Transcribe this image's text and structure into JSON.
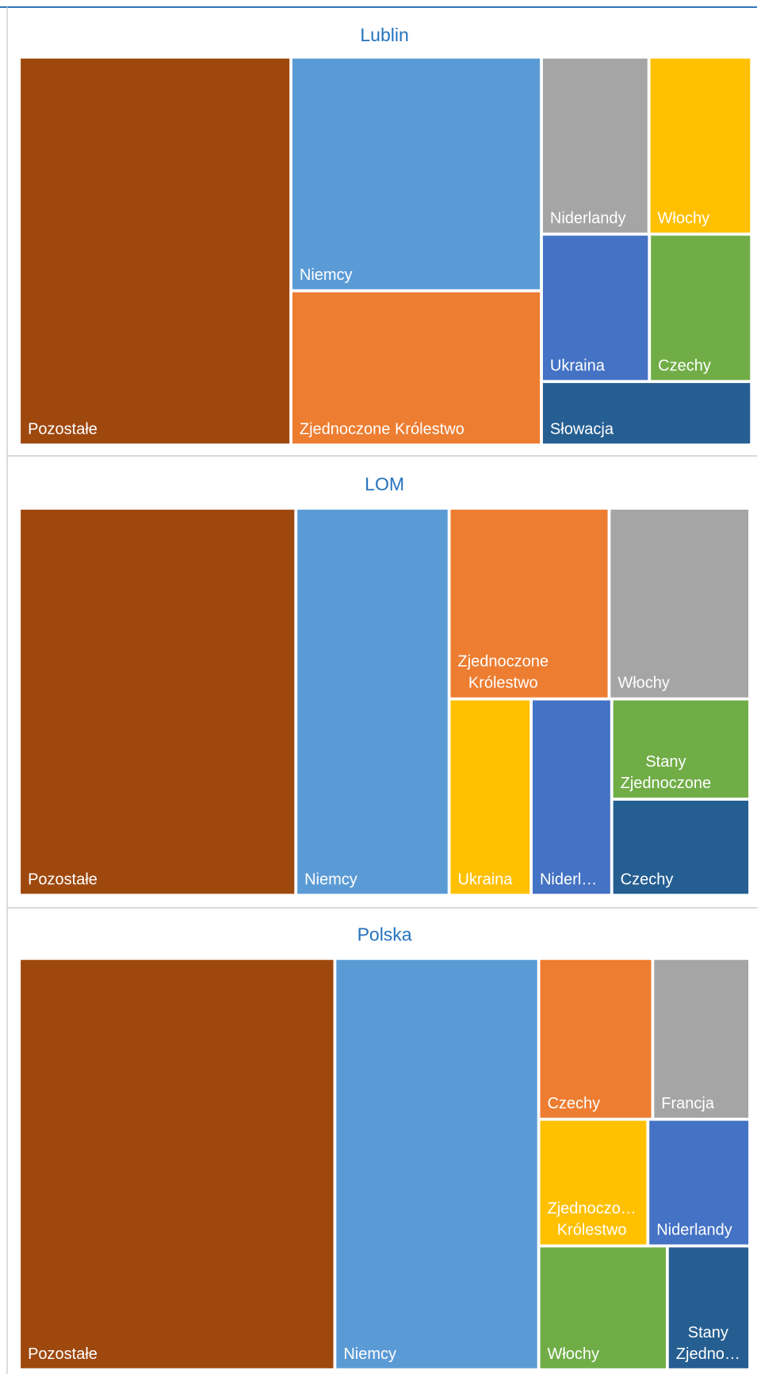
{
  "chart_data": [
    {
      "type": "treemap",
      "title": "Lublin",
      "categories": [
        "Pozostałe",
        "Niemcy",
        "Zjednoczone Królestwo",
        "Niderlandy",
        "Włochy",
        "Ukraina",
        "Czechy",
        "Słowacja"
      ],
      "values": [
        37.1,
        20.6,
        13.6,
        6.7,
        6.4,
        5.6,
        5.3,
        4.7
      ],
      "colors": [
        "#9e480e",
        "#5b9bd5",
        "#ed7d31",
        "#a5a5a5",
        "#ffc000",
        "#4472c4",
        "#70ad47",
        "#255e91"
      ]
    },
    {
      "type": "treemap",
      "title": "LOM",
      "categories": [
        "Pozostałe",
        "Niemcy",
        "Zjednoczone Królestwo",
        "Włochy",
        "Ukraina",
        "Niderl…",
        "Stany Zjednoczone",
        "Czechy"
      ],
      "values": [
        37.9,
        21.0,
        10.8,
        9.5,
        5.7,
        5.6,
        4.9,
        4.7
      ],
      "colors": [
        "#9e480e",
        "#5b9bd5",
        "#ed7d31",
        "#a5a5a5",
        "#ffc000",
        "#4472c4",
        "#70ad47",
        "#255e91"
      ]
    },
    {
      "type": "treemap",
      "title": "Polska",
      "categories": [
        "Pozostałe",
        "Niemcy",
        "Czechy",
        "Francja",
        "Zjednoczo… Królestwo",
        "Niderlandy",
        "Włochy",
        "Stany Zjedno…"
      ],
      "values": [
        43.2,
        27.9,
        6.1,
        5.2,
        4.6,
        4.3,
        5.3,
        3.4
      ],
      "colors": [
        "#9e480e",
        "#5b9bd5",
        "#ed7d31",
        "#a5a5a5",
        "#ffc000",
        "#4472c4",
        "#70ad47",
        "#255e91"
      ]
    }
  ]
}
